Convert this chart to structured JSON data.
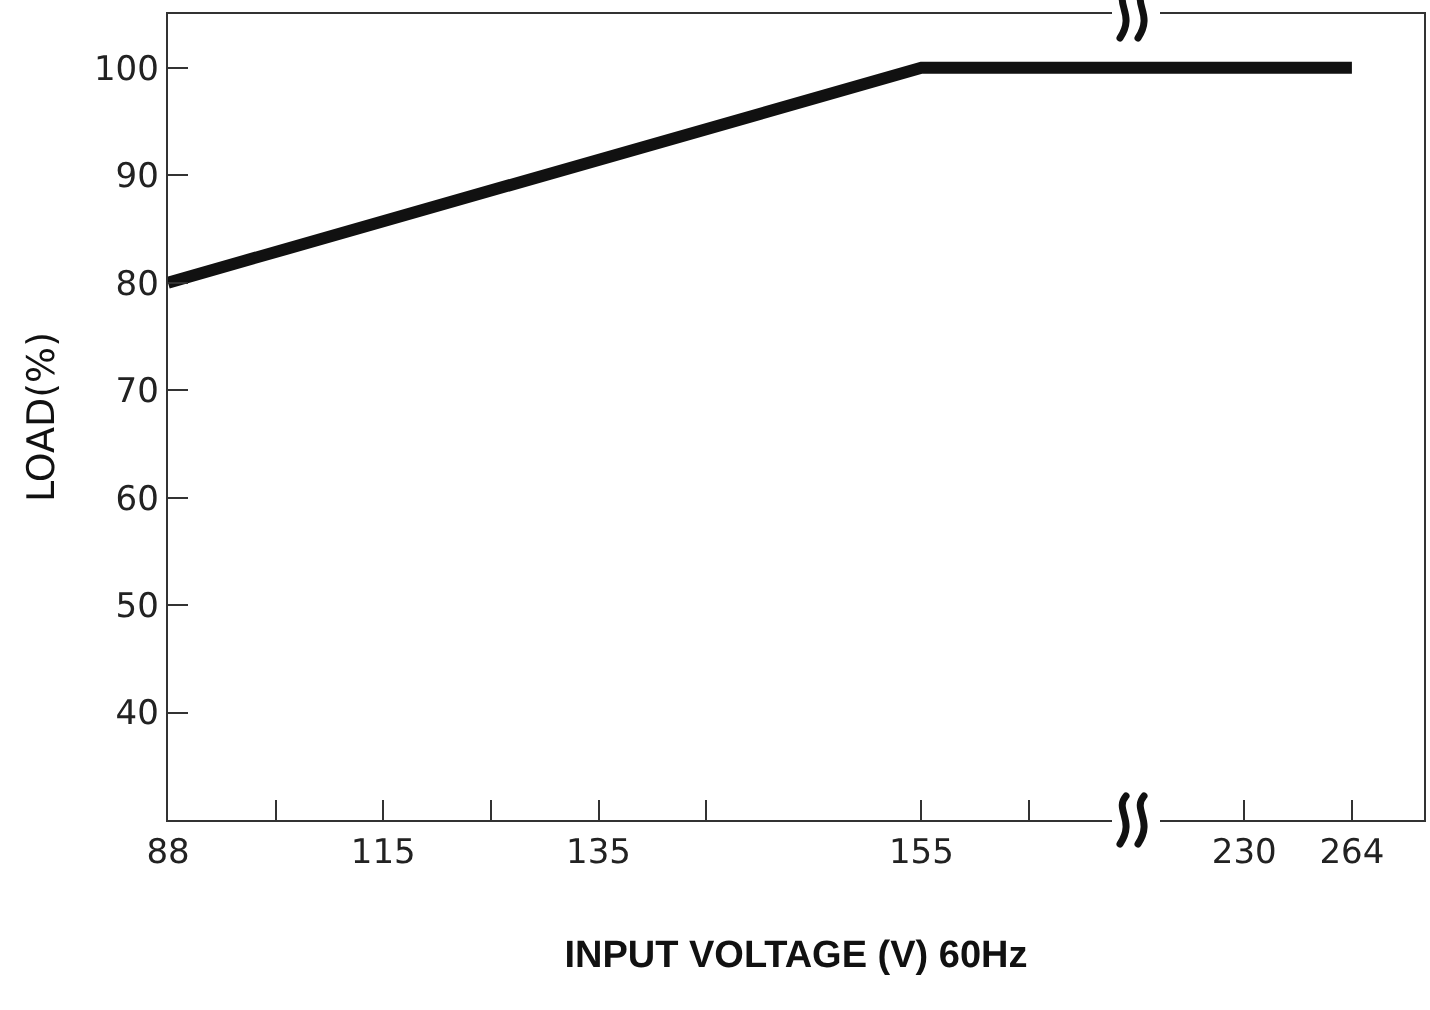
{
  "chart_data": {
    "type": "line",
    "xlabel": "INPUT VOLTAGE (V) 60Hz",
    "ylabel": "LOAD(%)",
    "categories": [
      "88",
      null,
      "115",
      null,
      "135",
      null,
      null,
      "155",
      null,
      null,
      "230",
      "264"
    ],
    "series": [
      {
        "color": "#111111",
        "values": [
          80,
          null,
          null,
          null,
          null,
          null,
          null,
          100,
          null,
          null,
          100,
          100
        ]
      }
    ],
    "ylim": [
      30,
      105
    ],
    "yticks": [
      40,
      50,
      60,
      70,
      80,
      90,
      100
    ],
    "grid": false,
    "marker": "none",
    "line_style": "solid"
  }
}
